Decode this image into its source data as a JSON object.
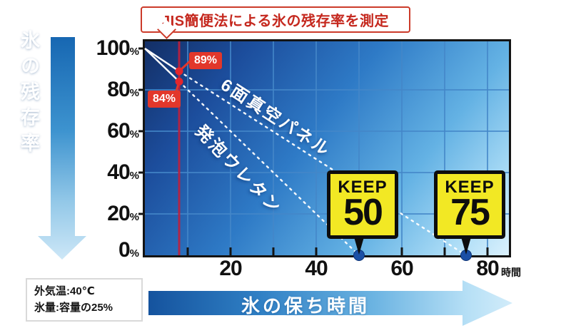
{
  "title": {
    "label": "JIS簡便法による氷の残存率を測定"
  },
  "y_axis": {
    "arrow_label": "氷の残存率",
    "ticks": [
      {
        "value": "100",
        "unit": "%"
      },
      {
        "value": "80",
        "unit": "%"
      },
      {
        "value": "60",
        "unit": "%"
      },
      {
        "value": "40",
        "unit": "%"
      },
      {
        "value": "20",
        "unit": "%"
      },
      {
        "value": "0",
        "unit": "%"
      }
    ]
  },
  "x_axis": {
    "ticks": [
      "20",
      "40",
      "60",
      "80"
    ],
    "unit": "時間",
    "arrow_label": "氷の保ち時間"
  },
  "series_labels": {
    "vacuum": "6面真空パネル",
    "urethane": "発泡ウレタン"
  },
  "measure_badges": {
    "vacuum": "89%",
    "urethane": "84%"
  },
  "keep_badges": [
    {
      "word": "KEEP",
      "value": "50"
    },
    {
      "word": "KEEP",
      "value": "75"
    }
  ],
  "conditions": {
    "line1": "外気温:40℃",
    "line2": "氷量:容量の25%"
  },
  "colors": {
    "accent_red": "#c01f3c",
    "badge_red": "#e2372b",
    "keep_yellow": "#f2e824",
    "end_dot_blue": "#1b4fa5",
    "grid_blue": "#4487c9",
    "line_white": "#ffffff"
  },
  "chart_data": {
    "type": "line",
    "title": "JIS簡便法による氷の残存率を測定",
    "xlabel": "時間",
    "ylabel": "氷の残存率 (%)",
    "xlim": [
      0,
      85
    ],
    "ylim": [
      0,
      100
    ],
    "x_ticks": [
      10,
      20,
      30,
      40,
      50,
      60,
      70,
      80
    ],
    "x_tick_labels": [
      20,
      40,
      60,
      80
    ],
    "y_ticks": [
      0,
      20,
      40,
      60,
      80,
      100
    ],
    "x_grid_step": 10,
    "y_grid_step": 20,
    "grid": true,
    "measure_x": 8,
    "series": [
      {
        "name": "6面真空パネル",
        "x": [
          0,
          8,
          75
        ],
        "y": [
          100,
          89,
          0
        ],
        "measure_label": "89%",
        "keep_hours": 75
      },
      {
        "name": "発泡ウレタン",
        "x": [
          0,
          8,
          50
        ],
        "y": [
          100,
          84,
          0
        ],
        "measure_label": "84%",
        "keep_hours": 50
      }
    ],
    "annotations": [
      "KEEP 50",
      "KEEP 75"
    ],
    "conditions": [
      "外気温:40℃",
      "氷量:容量の25%"
    ],
    "legend_position": "labels-on-lines"
  }
}
